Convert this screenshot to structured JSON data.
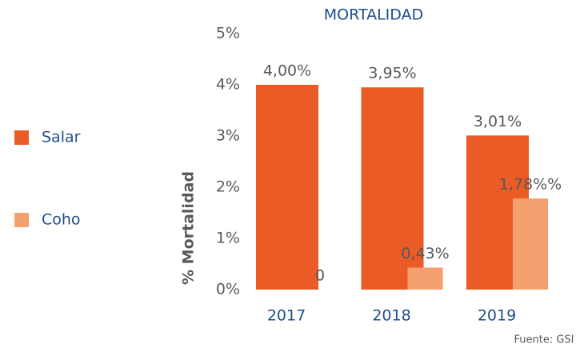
{
  "chart_data": {
    "type": "bar",
    "title": "MORTALIDAD",
    "ylabel": "% Mortalidad",
    "source": "Fuente: GSI",
    "categories": [
      "2017",
      "2018",
      "2019"
    ],
    "series": [
      {
        "name": "Salar",
        "color": "#ea5b25",
        "values": [
          4.0,
          3.95,
          3.01
        ],
        "value_labels": [
          "4,00%",
          "3,95%",
          "3,01%"
        ]
      },
      {
        "name": "Coho",
        "color": "#f4a06f",
        "values": [
          0,
          0.43,
          1.78
        ],
        "value_labels": [
          "0",
          "0,43%",
          "1,78%%"
        ]
      }
    ],
    "ylim": [
      0,
      5
    ],
    "yticks": [
      {
        "value": 0,
        "label": "0%"
      },
      {
        "value": 1,
        "label": "1%"
      },
      {
        "value": 2,
        "label": "2%"
      },
      {
        "value": 3,
        "label": "3%"
      },
      {
        "value": 4,
        "label": "4%"
      },
      {
        "value": 5,
        "label": "5%"
      }
    ],
    "grid": false,
    "legend": "left"
  }
}
